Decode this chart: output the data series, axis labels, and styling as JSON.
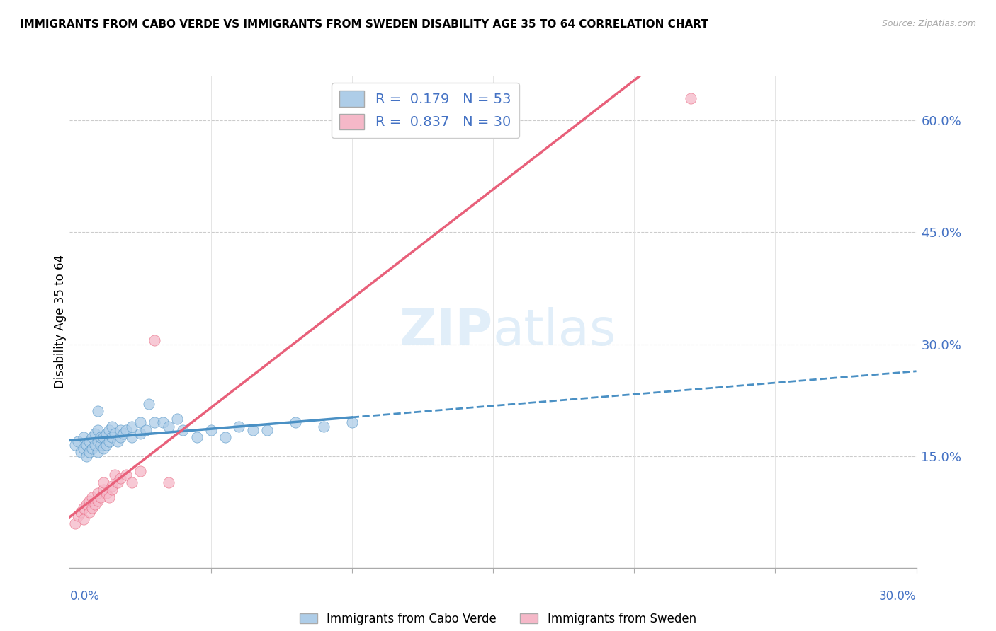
{
  "title": "IMMIGRANTS FROM CABO VERDE VS IMMIGRANTS FROM SWEDEN DISABILITY AGE 35 TO 64 CORRELATION CHART",
  "source": "Source: ZipAtlas.com",
  "ylabel": "Disability Age 35 to 64",
  "legend_entry1": "R =  0.179   N = 53",
  "legend_entry2": "R =  0.837   N = 30",
  "legend_label1": "Immigrants from Cabo Verde",
  "legend_label2": "Immigrants from Sweden",
  "cabo_verde_color": "#aecde8",
  "sweden_color": "#f5b8c8",
  "cabo_verde_line_color": "#4a90c4",
  "sweden_line_color": "#e8607a",
  "cabo_verde_scatter": [
    [
      0.002,
      0.165
    ],
    [
      0.003,
      0.17
    ],
    [
      0.004,
      0.155
    ],
    [
      0.005,
      0.16
    ],
    [
      0.005,
      0.175
    ],
    [
      0.006,
      0.15
    ],
    [
      0.006,
      0.165
    ],
    [
      0.007,
      0.155
    ],
    [
      0.007,
      0.17
    ],
    [
      0.008,
      0.16
    ],
    [
      0.008,
      0.175
    ],
    [
      0.009,
      0.165
    ],
    [
      0.009,
      0.18
    ],
    [
      0.01,
      0.155
    ],
    [
      0.01,
      0.17
    ],
    [
      0.01,
      0.185
    ],
    [
      0.01,
      0.21
    ],
    [
      0.011,
      0.165
    ],
    [
      0.011,
      0.175
    ],
    [
      0.012,
      0.16
    ],
    [
      0.012,
      0.175
    ],
    [
      0.013,
      0.165
    ],
    [
      0.013,
      0.18
    ],
    [
      0.014,
      0.17
    ],
    [
      0.014,
      0.185
    ],
    [
      0.015,
      0.175
    ],
    [
      0.015,
      0.19
    ],
    [
      0.016,
      0.18
    ],
    [
      0.017,
      0.17
    ],
    [
      0.018,
      0.175
    ],
    [
      0.018,
      0.185
    ],
    [
      0.019,
      0.18
    ],
    [
      0.02,
      0.185
    ],
    [
      0.022,
      0.175
    ],
    [
      0.022,
      0.19
    ],
    [
      0.025,
      0.18
    ],
    [
      0.025,
      0.195
    ],
    [
      0.027,
      0.185
    ],
    [
      0.028,
      0.22
    ],
    [
      0.03,
      0.195
    ],
    [
      0.033,
      0.195
    ],
    [
      0.035,
      0.19
    ],
    [
      0.038,
      0.2
    ],
    [
      0.04,
      0.185
    ],
    [
      0.045,
      0.175
    ],
    [
      0.05,
      0.185
    ],
    [
      0.055,
      0.175
    ],
    [
      0.06,
      0.19
    ],
    [
      0.065,
      0.185
    ],
    [
      0.07,
      0.185
    ],
    [
      0.08,
      0.195
    ],
    [
      0.09,
      0.19
    ],
    [
      0.1,
      0.195
    ]
  ],
  "sweden_scatter": [
    [
      0.002,
      0.06
    ],
    [
      0.003,
      0.07
    ],
    [
      0.004,
      0.075
    ],
    [
      0.005,
      0.08
    ],
    [
      0.005,
      0.065
    ],
    [
      0.006,
      0.085
    ],
    [
      0.007,
      0.075
    ],
    [
      0.007,
      0.09
    ],
    [
      0.008,
      0.08
    ],
    [
      0.008,
      0.095
    ],
    [
      0.009,
      0.085
    ],
    [
      0.01,
      0.09
    ],
    [
      0.01,
      0.1
    ],
    [
      0.011,
      0.095
    ],
    [
      0.012,
      0.105
    ],
    [
      0.012,
      0.115
    ],
    [
      0.013,
      0.1
    ],
    [
      0.014,
      0.095
    ],
    [
      0.015,
      0.11
    ],
    [
      0.015,
      0.105
    ],
    [
      0.016,
      0.125
    ],
    [
      0.017,
      0.115
    ],
    [
      0.018,
      0.12
    ],
    [
      0.02,
      0.125
    ],
    [
      0.022,
      0.115
    ],
    [
      0.025,
      0.13
    ],
    [
      0.03,
      0.305
    ],
    [
      0.035,
      0.115
    ],
    [
      0.14,
      0.6
    ],
    [
      0.22,
      0.63
    ]
  ],
  "xmin": 0.0,
  "xmax": 0.3,
  "ymin": 0.0,
  "ymax": 0.66,
  "ytick_vals": [
    0.15,
    0.3,
    0.45,
    0.6
  ],
  "ytick_labels": [
    "15.0%",
    "30.0%",
    "45.0%",
    "60.0%"
  ],
  "xtick_vals": [
    0.05,
    0.1,
    0.15,
    0.2,
    0.25,
    0.3
  ]
}
